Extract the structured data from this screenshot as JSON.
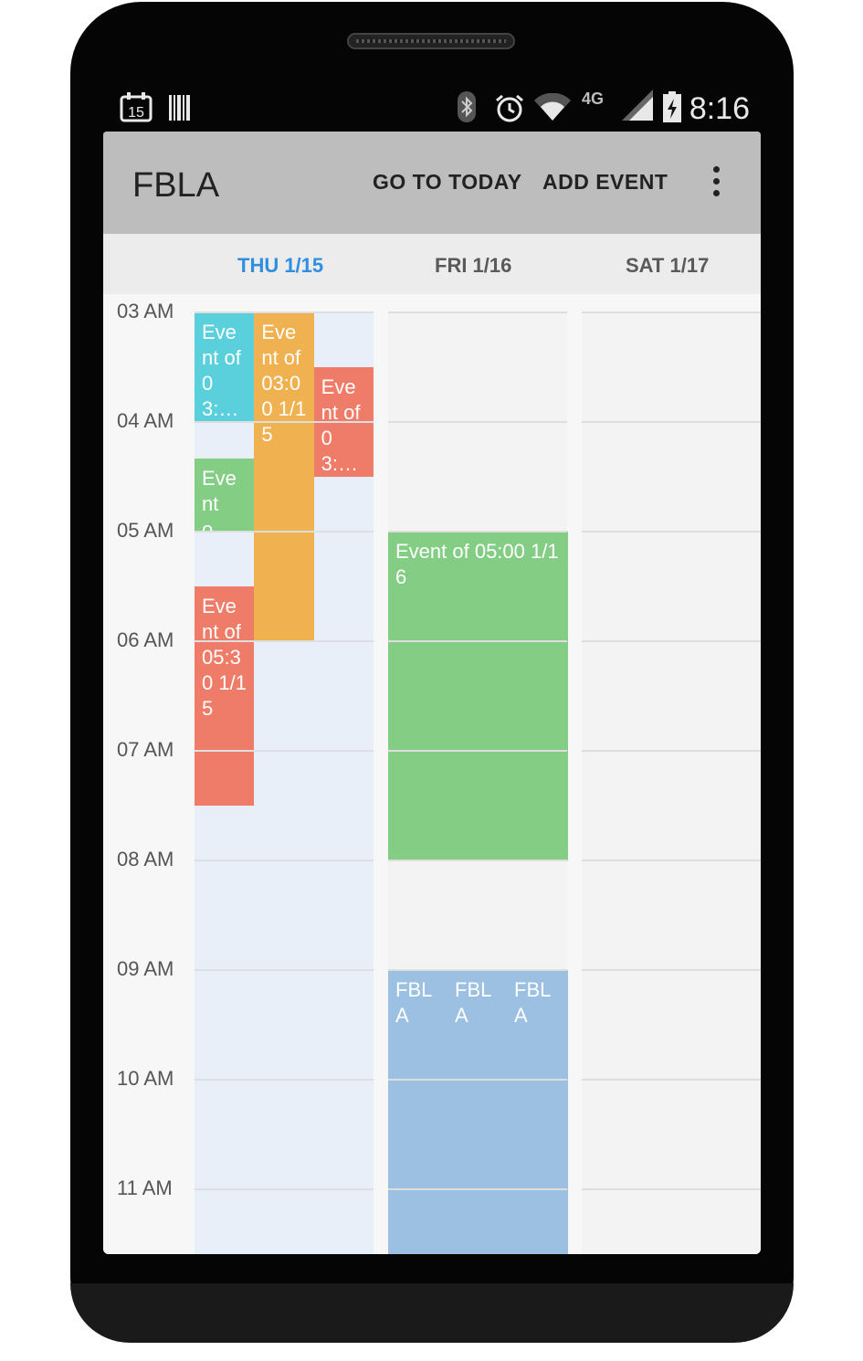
{
  "status_bar": {
    "calendar_badge": "15",
    "network_label": "4G",
    "time": "8:16",
    "icons": [
      "calendar-notification-icon",
      "barcode-notification-icon",
      "bluetooth-icon",
      "alarm-icon",
      "wifi-icon",
      "signal-4g-icon",
      "battery-charging-icon"
    ]
  },
  "app_bar": {
    "title": "FBLA",
    "go_to_today": "GO TO TODAY",
    "add_event": "ADD EVENT",
    "overflow_icon": "more-vert-icon"
  },
  "days": [
    {
      "label": "THU 1/15",
      "is_today": true
    },
    {
      "label": "FRI 1/16",
      "is_today": false
    },
    {
      "label": "SAT 1/17",
      "is_today": false
    }
  ],
  "hours": [
    "03 AM",
    "04 AM",
    "05 AM",
    "06 AM",
    "07 AM",
    "08 AM",
    "09 AM",
    "10 AM",
    "11 AM"
  ],
  "events": [
    {
      "day": 0,
      "start": 3.0,
      "end": 4.0,
      "lane": 0,
      "lanes": 3,
      "text": "Eve nt of 03:…",
      "color": "#5ad0dc"
    },
    {
      "day": 0,
      "start": 3.0,
      "end": 6.0,
      "lane": 1,
      "lanes": 3,
      "text": "Eve nt of 03:0 0 1/1 5",
      "color": "#f0b150"
    },
    {
      "day": 0,
      "start": 3.5,
      "end": 4.5,
      "lane": 2,
      "lanes": 3,
      "text": "Eve nt of 03:…",
      "color": "#ee7c68"
    },
    {
      "day": 0,
      "start": 4.333,
      "end": 5.0,
      "lane": 0,
      "lanes": 3,
      "text": "Eve nt o…",
      "color": "#84cd84"
    },
    {
      "day": 0,
      "start": 5.5,
      "end": 7.5,
      "lane": 0,
      "lanes": 3,
      "text": "Eve nt of 05:3 0 1/1 5",
      "color": "#ee7c68"
    },
    {
      "day": 1,
      "start": 5.0,
      "end": 8.0,
      "lane": 0,
      "lanes": 1,
      "text": "Event of 05:00 1/16",
      "color": "#84cd84"
    },
    {
      "day": 1,
      "start": 9.0,
      "end": 11.6,
      "lane": 0,
      "lanes": 1,
      "text": "FBL A    FBL A    FBL A",
      "color": "#9bc0e2"
    }
  ],
  "colors": {
    "accent_today": "#2f8ee0",
    "today_column": "#e8eff8",
    "other_column": "#f3f3f3",
    "app_bar": "#bdbdbd"
  }
}
